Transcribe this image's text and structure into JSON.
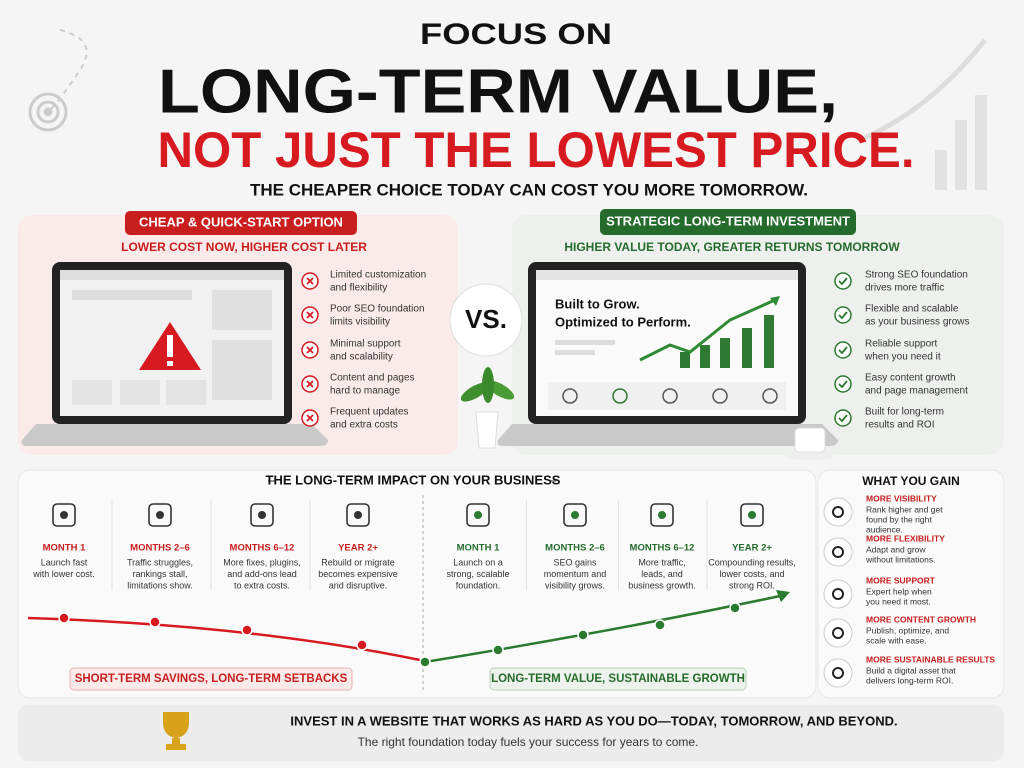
{
  "header": {
    "kicker": "FOCUS ON",
    "title": "LONG-TERM VALUE,",
    "title_accent": "NOT JUST THE LOWEST PRICE.",
    "subtitle": "THE CHEAPER CHOICE TODAY CAN COST YOU MORE TOMORROW."
  },
  "cheap": {
    "badge": "CHEAP & QUICK-START OPTION",
    "tagline": "LOWER COST NOW, HIGHER COST LATER",
    "items": [
      [
        "Limited customization",
        "and flexibility"
      ],
      [
        "Poor SEO foundation",
        "limits visibility"
      ],
      [
        "Minimal support",
        "and scalability"
      ],
      [
        "Content and pages",
        "hard to manage"
      ],
      [
        "Frequent updates",
        "and extra costs"
      ]
    ]
  },
  "versus": "VS.",
  "strategic": {
    "badge": "STRATEGIC LONG-TERM INVESTMENT",
    "tagline": "HIGHER VALUE TODAY, GREATER RETURNS TOMORROW",
    "screen": [
      "Built to Grow.",
      "Optimized to Perform."
    ],
    "items": [
      [
        "Strong SEO foundation",
        "drives more traffic"
      ],
      [
        "Flexible and scalable",
        "as your business grows"
      ],
      [
        "Reliable support",
        "when you need it"
      ],
      [
        "Easy content growth",
        "and page management"
      ],
      [
        "Built for long-term",
        "results and ROI"
      ]
    ]
  },
  "impact": {
    "title": "THE LONG-TERM IMPACT ON YOUR BUSINESS",
    "stages": [
      {
        "period": "MONTH 1",
        "text": [
          "Launch fast",
          "with lower cost."
        ]
      },
      {
        "period": "MONTHS 2–6",
        "text": [
          "Traffic struggles,",
          "rankings stall,",
          "limitations show."
        ]
      },
      {
        "period": "MONTHS 6–12",
        "text": [
          "More fixes, plugins,",
          "and add-ons lead",
          "to extra costs."
        ]
      },
      {
        "period": "YEAR 2+",
        "text": [
          "Rebuild or migrate",
          "becomes expensive",
          "and disruptive."
        ]
      },
      {
        "period": "MONTH 1",
        "text": [
          "Launch on a",
          "strong, scalable",
          "foundation."
        ]
      },
      {
        "period": "MONTHS 2–6",
        "text": [
          "SEO gains",
          "momentum and",
          "visibility grows."
        ]
      },
      {
        "period": "MONTHS 6–12",
        "text": [
          "More traffic,",
          "leads, and",
          "business growth."
        ]
      },
      {
        "period": "YEAR 2+",
        "text": [
          "Compounding results,",
          "lower costs, and",
          "strong ROI."
        ]
      }
    ],
    "short_label": "SHORT-TERM SAVINGS, LONG-TERM SETBACKS",
    "long_label": "LONG-TERM VALUE, SUSTAINABLE GROWTH"
  },
  "gains": {
    "title": "WHAT YOU GAIN",
    "items": [
      {
        "title": "MORE VISIBILITY",
        "text": [
          "Rank higher and get",
          "found by the right",
          "audience."
        ]
      },
      {
        "title": "MORE FLEXIBILITY",
        "text": [
          "Adapt and grow",
          "without limitations."
        ]
      },
      {
        "title": "MORE SUPPORT",
        "text": [
          "Expert help when",
          "you need it most."
        ]
      },
      {
        "title": "MORE CONTENT GROWTH",
        "text": [
          "Publish, optimize, and",
          "scale with ease."
        ]
      },
      {
        "title": "MORE SUSTAINABLE RESULTS",
        "text": [
          "Build a digital asset that",
          "delivers long-term ROI."
        ]
      }
    ]
  },
  "footer": {
    "headline": "INVEST IN A WEBSITE THAT WORKS AS HARD AS YOU DO—TODAY, TOMORROW, AND BEYOND.",
    "note": "The right foundation today fuels your success for years to come."
  }
}
